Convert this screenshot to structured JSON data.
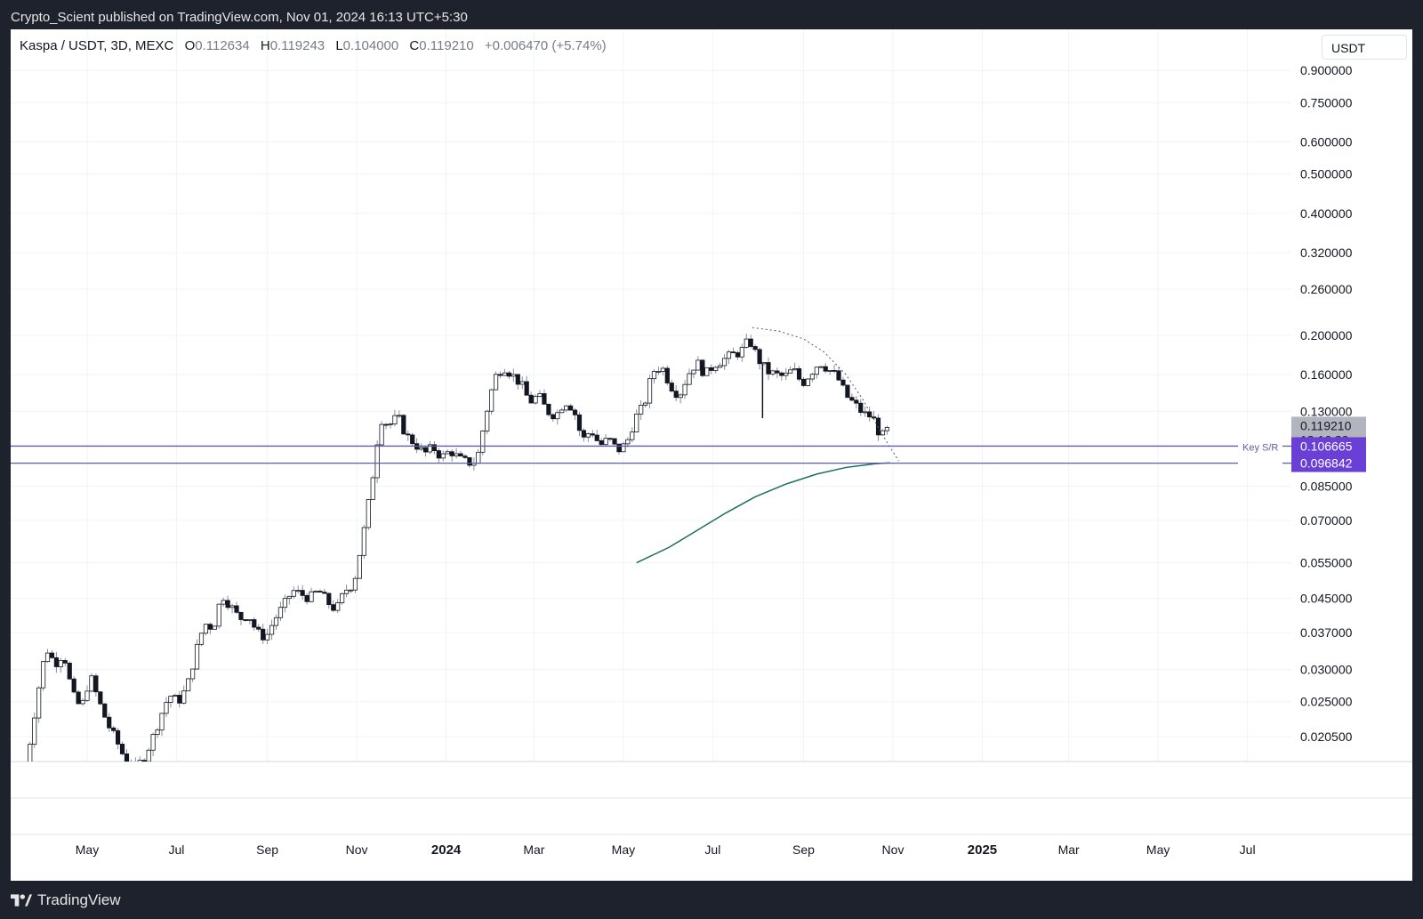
{
  "header": {
    "published_text": "Crypto_Scient published on TradingView.com, Nov 01, 2024 16:13 UTC+5:30"
  },
  "legend": {
    "symbol": "Kaspa / USDT, 3D, MEXC",
    "open_label": "O",
    "open": "0.112634",
    "high_label": "H",
    "high": "0.119243",
    "low_label": "L",
    "low": "0.104000",
    "close_label": "C",
    "close": "0.119210",
    "change": "+0.006470 (+5.74%)"
  },
  "currency_button": "USDT",
  "footer": {
    "brand": "TradingView",
    "logo_icon": "tradingview-logo-icon"
  },
  "chart_data": {
    "type": "candlestick",
    "scale": "log",
    "y_tick_labels": [
      "0.900000",
      "0.750000",
      "0.600000",
      "0.500000",
      "0.400000",
      "0.320000",
      "0.260000",
      "0.200000",
      "0.160000",
      "0.130000",
      "0.085000",
      "0.070000",
      "0.055000",
      "0.045000",
      "0.037000",
      "0.030000",
      "0.025000",
      "0.020500"
    ],
    "y_ticks": [
      0.9,
      0.75,
      0.6,
      0.5,
      0.4,
      0.32,
      0.26,
      0.2,
      0.16,
      0.13,
      0.085,
      0.07,
      0.055,
      0.045,
      0.037,
      0.03,
      0.025,
      0.0205
    ],
    "x_tick_labels": [
      "May",
      "Jul",
      "Sep",
      "Nov",
      "2024",
      "Mar",
      "May",
      "Jul",
      "Sep",
      "Nov",
      "2025",
      "Mar",
      "May",
      "Jul"
    ],
    "x_ticks": [
      "2023-05-01",
      "2023-07-01",
      "2023-09-01",
      "2023-11-01",
      "2024-01-01",
      "2024-03-01",
      "2024-05-01",
      "2024-07-01",
      "2024-09-01",
      "2024-11-01",
      "2025-01-01",
      "2025-03-01",
      "2025-05-01",
      "2025-07-01"
    ],
    "bold_x_labels": [
      "2024",
      "2025"
    ],
    "price_path": [
      [
        "2023-03-20",
        0.017
      ],
      [
        "2023-03-28",
        0.026
      ],
      [
        "2023-04-03",
        0.034
      ],
      [
        "2023-04-09",
        0.031
      ],
      [
        "2023-04-15",
        0.033
      ],
      [
        "2023-04-21",
        0.026
      ],
      [
        "2023-04-27",
        0.024
      ],
      [
        "2023-05-03",
        0.029
      ],
      [
        "2023-05-09",
        0.025
      ],
      [
        "2023-05-15",
        0.022
      ],
      [
        "2023-05-21",
        0.02
      ],
      [
        "2023-05-27",
        0.018
      ],
      [
        "2023-06-02",
        0.017
      ],
      [
        "2023-06-08",
        0.018
      ],
      [
        "2023-06-14",
        0.02
      ],
      [
        "2023-06-20",
        0.023
      ],
      [
        "2023-06-26",
        0.026
      ],
      [
        "2023-07-02",
        0.025
      ],
      [
        "2023-07-08",
        0.027
      ],
      [
        "2023-07-14",
        0.033
      ],
      [
        "2023-07-20",
        0.039
      ],
      [
        "2023-07-26",
        0.038
      ],
      [
        "2023-08-01",
        0.046
      ],
      [
        "2023-08-07",
        0.043
      ],
      [
        "2023-08-13",
        0.04
      ],
      [
        "2023-08-19",
        0.041
      ],
      [
        "2023-08-25",
        0.037
      ],
      [
        "2023-08-31",
        0.036
      ],
      [
        "2023-09-06",
        0.04
      ],
      [
        "2023-09-12",
        0.043
      ],
      [
        "2023-09-18",
        0.047
      ],
      [
        "2023-09-24",
        0.046
      ],
      [
        "2023-09-30",
        0.045
      ],
      [
        "2023-10-06",
        0.047
      ],
      [
        "2023-10-12",
        0.044
      ],
      [
        "2023-10-18",
        0.042
      ],
      [
        "2023-10-24",
        0.047
      ],
      [
        "2023-10-30",
        0.049
      ],
      [
        "2023-11-05",
        0.063
      ],
      [
        "2023-11-11",
        0.085
      ],
      [
        "2023-11-17",
        0.125
      ],
      [
        "2023-11-23",
        0.12
      ],
      [
        "2023-11-29",
        0.126
      ],
      [
        "2023-12-05",
        0.113
      ],
      [
        "2023-12-11",
        0.108
      ],
      [
        "2023-12-17",
        0.102
      ],
      [
        "2023-12-23",
        0.106
      ],
      [
        "2023-12-29",
        0.1
      ],
      [
        "2024-01-04",
        0.104
      ],
      [
        "2024-01-10",
        0.099
      ],
      [
        "2024-01-16",
        0.097
      ],
      [
        "2024-01-22",
        0.098
      ],
      [
        "2024-01-28",
        0.127
      ],
      [
        "2024-02-03",
        0.157
      ],
      [
        "2024-02-09",
        0.168
      ],
      [
        "2024-02-15",
        0.16
      ],
      [
        "2024-02-21",
        0.152
      ],
      [
        "2024-02-27",
        0.137
      ],
      [
        "2024-03-04",
        0.142
      ],
      [
        "2024-03-10",
        0.13
      ],
      [
        "2024-03-16",
        0.127
      ],
      [
        "2024-03-22",
        0.138
      ],
      [
        "2024-03-28",
        0.132
      ],
      [
        "2024-04-03",
        0.11
      ],
      [
        "2024-04-09",
        0.117
      ],
      [
        "2024-04-15",
        0.107
      ],
      [
        "2024-04-21",
        0.111
      ],
      [
        "2024-04-27",
        0.104
      ],
      [
        "2024-05-03",
        0.108
      ],
      [
        "2024-05-09",
        0.125
      ],
      [
        "2024-05-15",
        0.134
      ],
      [
        "2024-05-21",
        0.163
      ],
      [
        "2024-05-27",
        0.168
      ],
      [
        "2024-06-02",
        0.151
      ],
      [
        "2024-06-08",
        0.142
      ],
      [
        "2024-06-14",
        0.16
      ],
      [
        "2024-06-20",
        0.172
      ],
      [
        "2024-06-26",
        0.16
      ],
      [
        "2024-07-02",
        0.17
      ],
      [
        "2024-07-08",
        0.174
      ],
      [
        "2024-07-14",
        0.179
      ],
      [
        "2024-07-20",
        0.182
      ],
      [
        "2024-07-26",
        0.195
      ],
      [
        "2024-08-01",
        0.175
      ],
      [
        "2024-08-07",
        0.163
      ],
      [
        "2024-08-13",
        0.16
      ],
      [
        "2024-08-19",
        0.158
      ],
      [
        "2024-08-25",
        0.165
      ],
      [
        "2024-08-31",
        0.152
      ],
      [
        "2024-09-06",
        0.162
      ],
      [
        "2024-09-12",
        0.172
      ],
      [
        "2024-09-18",
        0.165
      ],
      [
        "2024-09-24",
        0.158
      ],
      [
        "2024-09-30",
        0.142
      ],
      [
        "2024-10-06",
        0.135
      ],
      [
        "2024-10-12",
        0.128
      ],
      [
        "2024-10-18",
        0.126
      ],
      [
        "2024-10-24",
        0.112
      ],
      [
        "2024-10-30",
        0.119
      ]
    ],
    "wick_spikes": [
      [
        "2024-08-04",
        0.125
      ]
    ],
    "horizontal_lines": [
      {
        "label": "Key S/R",
        "price": 0.106665,
        "price_label": "0.106665"
      },
      {
        "price": 0.096842,
        "price_label": "0.096842"
      }
    ],
    "last_price": {
      "value": 0.11921,
      "label": "0.119210",
      "countdown": "13:16:29"
    },
    "moving_average": [
      [
        "2024-05-10",
        0.055
      ],
      [
        "2024-06-01",
        0.06
      ],
      [
        "2024-06-20",
        0.066
      ],
      [
        "2024-07-10",
        0.073
      ],
      [
        "2024-07-30",
        0.08
      ],
      [
        "2024-08-20",
        0.086
      ],
      [
        "2024-09-10",
        0.091
      ],
      [
        "2024-09-30",
        0.0945
      ],
      [
        "2024-10-20",
        0.0965
      ],
      [
        "2024-10-30",
        0.097
      ]
    ],
    "arc_curve": [
      [
        "2024-07-28",
        0.209
      ],
      [
        "2024-08-15",
        0.205
      ],
      [
        "2024-09-01",
        0.196
      ],
      [
        "2024-09-15",
        0.182
      ],
      [
        "2024-09-30",
        0.16
      ],
      [
        "2024-10-12",
        0.138
      ],
      [
        "2024-10-24",
        0.115
      ],
      [
        "2024-11-05",
        0.098
      ]
    ],
    "colors": {
      "candle_up": "#ffffff",
      "candle_down": "#131722",
      "candle_border": "#131722",
      "wick": "#8a8d96",
      "sr_line": "#5d5ca8",
      "label_bg": "#6a3fd6",
      "last_price_bg": "#b2b5be",
      "ma_line": "#1b6f5a"
    }
  }
}
